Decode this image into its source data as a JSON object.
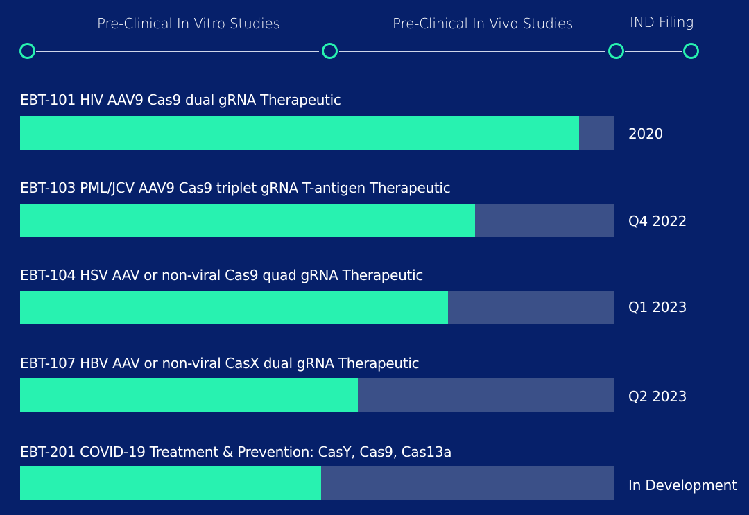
{
  "chart_data": {
    "type": "bar",
    "orientation": "horizontal",
    "stages": [
      "Pre-Clinical In Vitro Studies",
      "Pre-Clinical In Vivo Studies",
      "IND Filing"
    ],
    "categories": [
      "EBT-101 HIV AAV9 Cas9 dual gRNA Therapeutic",
      "EBT-103 PML/JCV AAV9 Cas9 triplet gRNA T-antigen Therapeutic",
      "EBT-104 HSV AAV or non-viral Cas9 quad gRNA Therapeutic",
      "EBT-107 HBV AAV or non-viral CasX dual gRNA Therapeutic",
      "EBT-201 COVID-19 Treatment & Prevention: CasY, Cas9, Cas13a"
    ],
    "values": [
      0.94,
      0.766,
      0.72,
      0.568,
      0.507
    ],
    "dates": [
      "2020",
      "Q4 2022",
      "Q1 2023",
      "Q2 2023",
      "In Development"
    ],
    "colors": {
      "background": "#06206a",
      "progress": "#28f2b0",
      "track": "#3b5088",
      "text": "#ffffff"
    }
  }
}
